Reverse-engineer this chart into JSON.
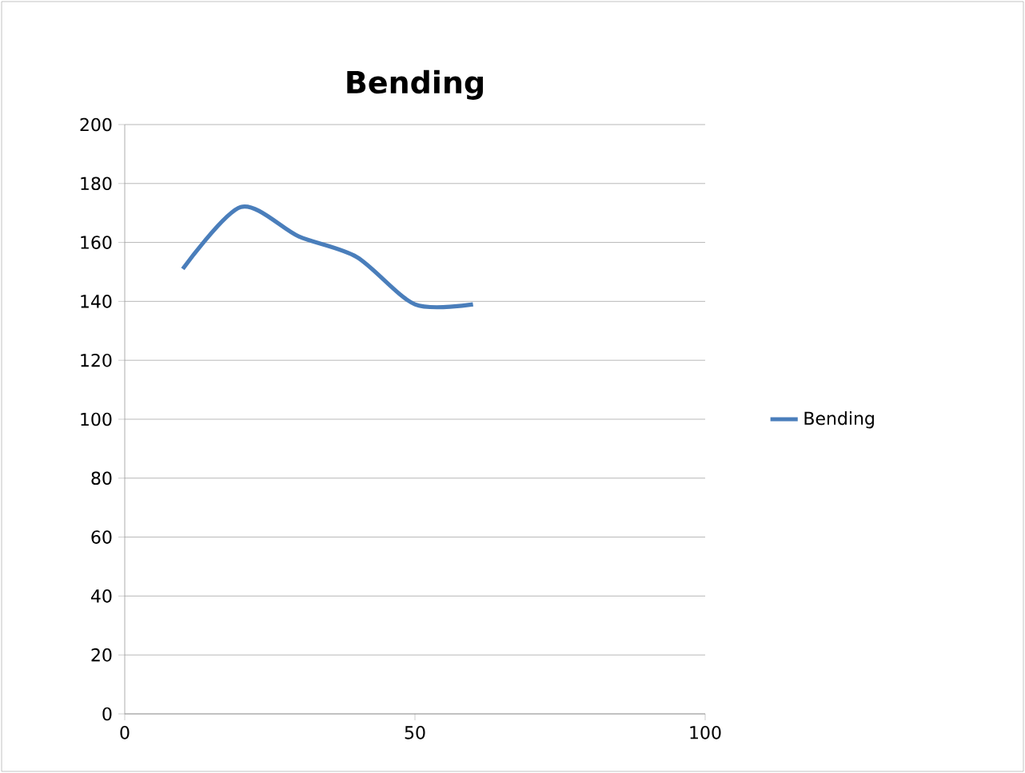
{
  "chart_data": {
    "type": "line",
    "title": "Bending",
    "x": [
      10,
      20,
      30,
      40,
      50,
      60
    ],
    "series": [
      {
        "name": "Bending",
        "color": "#4a7ebb",
        "values": [
          151,
          172,
          162,
          155,
          139,
          139
        ]
      }
    ],
    "xlim": [
      0,
      100
    ],
    "xticks": [
      0,
      50,
      100
    ],
    "ylim": [
      0,
      200
    ],
    "yticks": [
      0,
      20,
      40,
      60,
      80,
      100,
      120,
      140,
      160,
      180,
      200
    ],
    "grid": "y",
    "legend": "right",
    "marker": "none",
    "line_style": "solid"
  }
}
